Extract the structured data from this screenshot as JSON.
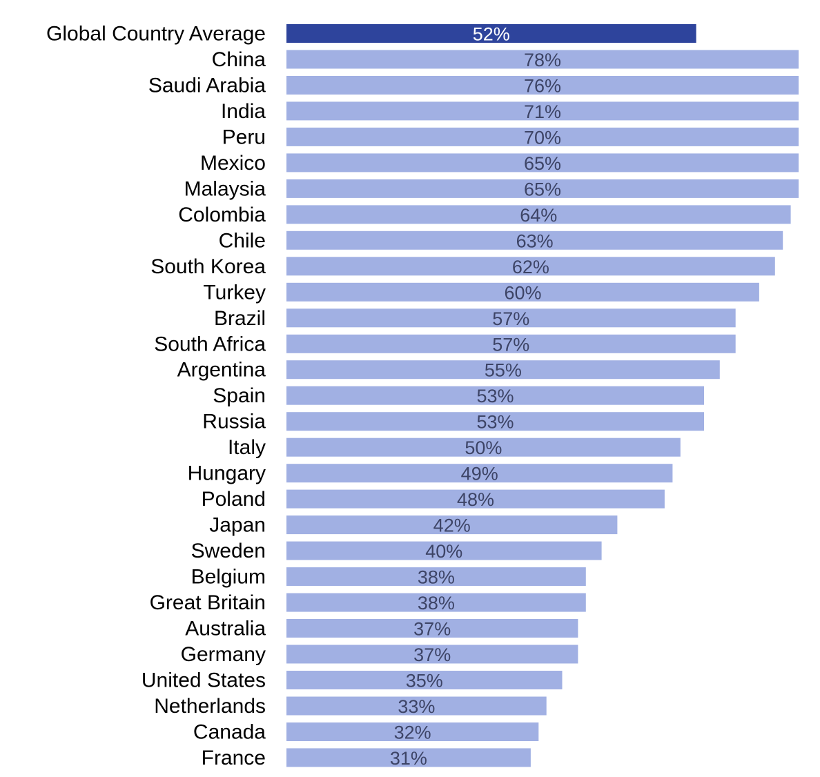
{
  "chart_data": {
    "type": "bar",
    "orientation": "horizontal",
    "categories": [
      "Global Country Average",
      "China",
      "Saudi Arabia",
      "India",
      "Peru",
      "Mexico",
      "Malaysia",
      "Colombia",
      "Chile",
      "South Korea",
      "Turkey",
      "Brazil",
      "South Africa",
      "Argentina",
      "Spain",
      "Russia",
      "Italy",
      "Hungary",
      "Poland",
      "Japan",
      "Sweden",
      "Belgium",
      "Great Britain",
      "Australia",
      "Germany",
      "United States",
      "Netherlands",
      "Canada",
      "France"
    ],
    "values": [
      52,
      78,
      76,
      71,
      70,
      65,
      65,
      64,
      63,
      62,
      60,
      57,
      57,
      55,
      53,
      53,
      50,
      49,
      48,
      42,
      40,
      38,
      38,
      37,
      37,
      35,
      33,
      32,
      31
    ],
    "data_labels": [
      "52%",
      "78%",
      "76%",
      "71%",
      "70%",
      "65%",
      "65%",
      "64%",
      "63%",
      "62%",
      "60%",
      "57%",
      "57%",
      "55%",
      "53%",
      "53%",
      "50%",
      "49%",
      "48%",
      "42%",
      "40%",
      "38%",
      "38%",
      "37%",
      "37%",
      "35%",
      "33%",
      "32%",
      "31%"
    ],
    "highlight_index": 0,
    "xlim": [
      0,
      65
    ],
    "grid": false,
    "legend": "none"
  },
  "colors": {
    "highlight_bar": "#2e449c",
    "bar": "#a1b0e3",
    "highlight_label": "#ffffff",
    "label": "#3d4466"
  }
}
